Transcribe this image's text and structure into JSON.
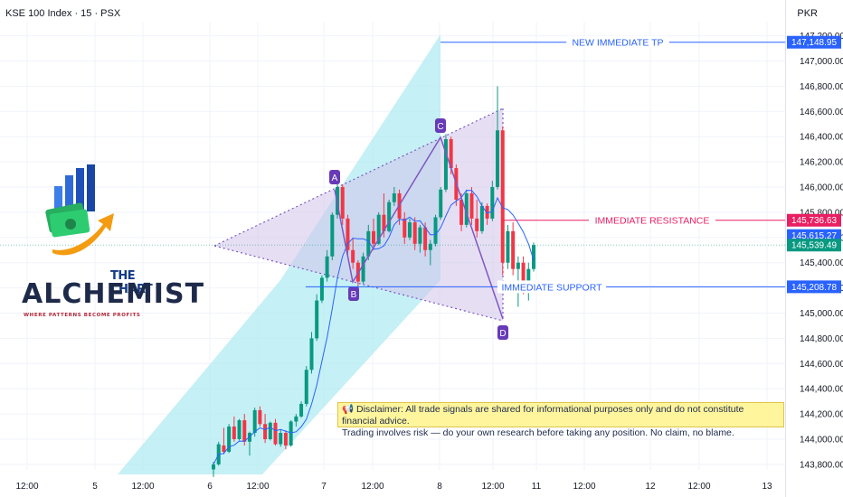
{
  "header": {
    "title": "KSE 100 Index · 15 · PSX",
    "currency": "PKR"
  },
  "logo": {
    "top_line": "THE CHART",
    "main": "ALCHEMIST",
    "tagline": "WHERE PATTERNS BECOME PROFITS"
  },
  "disclaimer": {
    "icon": "megaphone-icon",
    "line1": "📢 Disclaimer: All trade signals are shared for informational purposes only and do not constitute financial advice.",
    "line2": "Trading involves risk — do your own research before taking any position. No claim, no blame."
  },
  "chart_data": {
    "type": "candlestick",
    "symbol": "KSE 100 Index",
    "interval": "15",
    "exchange": "PSX",
    "currency": "PKR",
    "x_tick_labels": [
      "12:00",
      "5",
      "12:00",
      "6",
      "12:00",
      "7",
      "12:00",
      "8",
      "12:00",
      "11",
      "12:00",
      "12",
      "12:00",
      "13"
    ],
    "y_ticks": [
      143800,
      144000,
      144200,
      144400,
      144600,
      144800,
      145000,
      145200,
      145400,
      145600,
      145800,
      146000,
      146200,
      146400,
      146600,
      146800,
      147000,
      147200
    ],
    "y_range": [
      143700,
      147300
    ],
    "levels": [
      {
        "name": "NEW IMMEDIATE TP",
        "value": 147148.95,
        "label": "147,148.95",
        "color": "#2962ff"
      },
      {
        "name": "IMMEDIATE RESISTANCE",
        "value": 145736.63,
        "label": "145,736.63",
        "color": "#e91e63"
      },
      {
        "name": "IMMEDIATE SUPPORT",
        "value": 145208.78,
        "label": "145,208.78",
        "color": "#2962ff"
      }
    ],
    "price_tags": [
      {
        "value": 145615.27,
        "label": "145,615.27",
        "color": "#2962ff"
      },
      {
        "value": 145539.49,
        "label": "145,539.49",
        "color": "#089981"
      }
    ],
    "pattern_points": [
      {
        "name": "A",
        "value": 146050
      },
      {
        "name": "B",
        "value": 145220
      },
      {
        "name": "C",
        "value": 146420
      },
      {
        "name": "D",
        "value": 144920
      }
    ],
    "candles": [
      {
        "o": 143760,
        "h": 143820,
        "l": 143700,
        "c": 143800
      },
      {
        "o": 143800,
        "h": 143980,
        "l": 143790,
        "c": 143960
      },
      {
        "o": 143950,
        "h": 144090,
        "l": 143880,
        "c": 143900
      },
      {
        "o": 143900,
        "h": 144120,
        "l": 143890,
        "c": 144100
      },
      {
        "o": 144100,
        "h": 144180,
        "l": 143980,
        "c": 144000
      },
      {
        "o": 144000,
        "h": 144160,
        "l": 143990,
        "c": 144150
      },
      {
        "o": 144150,
        "h": 144200,
        "l": 143950,
        "c": 143980
      },
      {
        "o": 143980,
        "h": 144060,
        "l": 143870,
        "c": 144050
      },
      {
        "o": 144050,
        "h": 144250,
        "l": 144020,
        "c": 144230
      },
      {
        "o": 144230,
        "h": 144260,
        "l": 144100,
        "c": 144120
      },
      {
        "o": 144120,
        "h": 144200,
        "l": 143970,
        "c": 144000
      },
      {
        "o": 144000,
        "h": 144140,
        "l": 143990,
        "c": 144130
      },
      {
        "o": 144130,
        "h": 144160,
        "l": 143950,
        "c": 143960
      },
      {
        "o": 143960,
        "h": 144080,
        "l": 143940,
        "c": 144050
      },
      {
        "o": 144050,
        "h": 144070,
        "l": 143920,
        "c": 143950
      },
      {
        "o": 143950,
        "h": 144150,
        "l": 143940,
        "c": 144140
      },
      {
        "o": 144140,
        "h": 144200,
        "l": 144100,
        "c": 144180
      },
      {
        "o": 144180,
        "h": 144300,
        "l": 144170,
        "c": 144280
      },
      {
        "o": 144280,
        "h": 144580,
        "l": 144260,
        "c": 144550
      },
      {
        "o": 144550,
        "h": 144850,
        "l": 144520,
        "c": 144800
      },
      {
        "o": 144800,
        "h": 145150,
        "l": 144780,
        "c": 145100
      },
      {
        "o": 145100,
        "h": 145300,
        "l": 145080,
        "c": 145280
      },
      {
        "o": 145280,
        "h": 145500,
        "l": 145250,
        "c": 145450
      },
      {
        "o": 145450,
        "h": 145800,
        "l": 145420,
        "c": 145780
      },
      {
        "o": 145780,
        "h": 146050,
        "l": 145750,
        "c": 146000
      },
      {
        "o": 146000,
        "h": 146020,
        "l": 145700,
        "c": 145750
      },
      {
        "o": 145750,
        "h": 145780,
        "l": 145450,
        "c": 145500
      },
      {
        "o": 145500,
        "h": 145600,
        "l": 145350,
        "c": 145400
      },
      {
        "o": 145400,
        "h": 145420,
        "l": 145200,
        "c": 145250
      },
      {
        "o": 145250,
        "h": 145480,
        "l": 145230,
        "c": 145450
      },
      {
        "o": 145450,
        "h": 145700,
        "l": 145420,
        "c": 145650
      },
      {
        "o": 145650,
        "h": 145750,
        "l": 145500,
        "c": 145550
      },
      {
        "o": 145550,
        "h": 145800,
        "l": 145540,
        "c": 145780
      },
      {
        "o": 145780,
        "h": 145950,
        "l": 145600,
        "c": 145650
      },
      {
        "o": 145650,
        "h": 145900,
        "l": 145640,
        "c": 145880
      },
      {
        "o": 145880,
        "h": 146000,
        "l": 145850,
        "c": 145950
      },
      {
        "o": 145950,
        "h": 145980,
        "l": 145700,
        "c": 145750
      },
      {
        "o": 145750,
        "h": 145800,
        "l": 145550,
        "c": 145600
      },
      {
        "o": 145600,
        "h": 145750,
        "l": 145580,
        "c": 145720
      },
      {
        "o": 145720,
        "h": 145760,
        "l": 145500,
        "c": 145550
      },
      {
        "o": 145550,
        "h": 145700,
        "l": 145480,
        "c": 145680
      },
      {
        "o": 145680,
        "h": 145720,
        "l": 145450,
        "c": 145500
      },
      {
        "o": 145500,
        "h": 145580,
        "l": 145380,
        "c": 145550
      },
      {
        "o": 145550,
        "h": 145780,
        "l": 145530,
        "c": 145760
      },
      {
        "o": 145760,
        "h": 146000,
        "l": 145740,
        "c": 145980
      },
      {
        "o": 145980,
        "h": 146420,
        "l": 145960,
        "c": 146380
      },
      {
        "o": 146380,
        "h": 146400,
        "l": 146100,
        "c": 146150
      },
      {
        "o": 146150,
        "h": 146180,
        "l": 145850,
        "c": 145900
      },
      {
        "o": 145900,
        "h": 145950,
        "l": 145650,
        "c": 145700
      },
      {
        "o": 145700,
        "h": 145980,
        "l": 145680,
        "c": 145950
      },
      {
        "o": 145950,
        "h": 146000,
        "l": 145700,
        "c": 145750
      },
      {
        "o": 145750,
        "h": 145900,
        "l": 145600,
        "c": 145650
      },
      {
        "o": 145650,
        "h": 145880,
        "l": 145630,
        "c": 145850
      },
      {
        "o": 145850,
        "h": 145870,
        "l": 145700,
        "c": 145750
      },
      {
        "o": 145750,
        "h": 146050,
        "l": 145730,
        "c": 146000
      },
      {
        "o": 146000,
        "h": 146800,
        "l": 145980,
        "c": 146450
      },
      {
        "o": 146450,
        "h": 146480,
        "l": 145300,
        "c": 145400
      },
      {
        "o": 145400,
        "h": 145700,
        "l": 145350,
        "c": 145650
      },
      {
        "o": 145650,
        "h": 145720,
        "l": 145300,
        "c": 145350
      },
      {
        "o": 145350,
        "h": 145450,
        "l": 145050,
        "c": 145400
      },
      {
        "o": 145400,
        "h": 145450,
        "l": 145150,
        "c": 145250
      },
      {
        "o": 145250,
        "h": 145400,
        "l": 145100,
        "c": 145350
      },
      {
        "o": 145350,
        "h": 145560,
        "l": 145330,
        "c": 145540
      }
    ]
  }
}
